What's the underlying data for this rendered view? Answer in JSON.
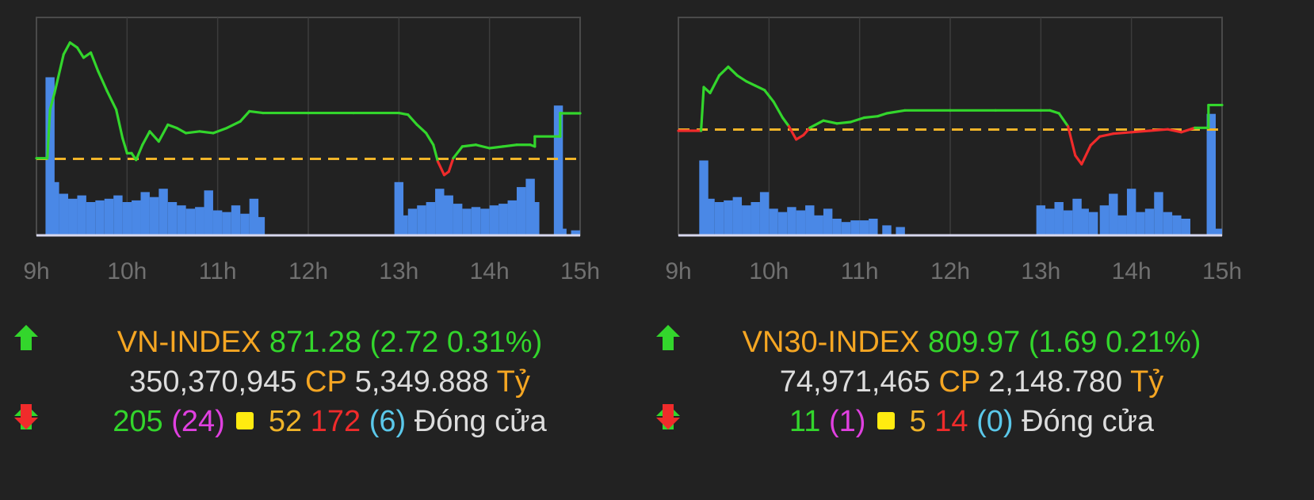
{
  "colors": {
    "background": "#222222",
    "up": "#33d62c",
    "down": "#f02b2b",
    "reference": "#f0b429",
    "volume": "#4a88e6",
    "index_label": "#f5a623",
    "ceiling": "#e040e0",
    "floor": "#5bc8ea",
    "neutral": "#dddddd",
    "axis_label": "#707070"
  },
  "panels": [
    {
      "index_name": "VN-INDEX",
      "value": "871.28",
      "change": "(2.72 0.31%)",
      "volume_cp": "350,370,945",
      "cp_label": "CP",
      "turnover": "5,349.888",
      "ty_label": "Tỷ",
      "advances": "205",
      "advances_ceiling": "(24)",
      "unchanged": "52",
      "declines": "172",
      "declines_floor": "(6)",
      "status": "Đóng cửa"
    },
    {
      "index_name": "VN30-INDEX",
      "value": "809.97",
      "change": "(1.69 0.21%)",
      "volume_cp": "74,971,465",
      "cp_label": "CP",
      "turnover": "2,148.780",
      "ty_label": "Tỷ",
      "advances": "11",
      "advances_ceiling": "(1)",
      "unchanged": "5",
      "declines": "14",
      "declines_floor": "(0)",
      "status": "Đóng cửa"
    }
  ],
  "chart_data": [
    {
      "type": "line",
      "x_ticks": [
        "9h",
        "10h",
        "11h",
        "12h",
        "13h",
        "14h",
        "15h"
      ],
      "xlim": [
        9,
        15
      ],
      "ylim": [
        864,
        877
      ],
      "reference": 868.56,
      "line": [
        [
          9.0,
          868.6
        ],
        [
          9.12,
          868.6
        ],
        [
          9.15,
          871.5
        ],
        [
          9.2,
          872.5
        ],
        [
          9.3,
          874.8
        ],
        [
          9.37,
          875.5
        ],
        [
          9.45,
          875.2
        ],
        [
          9.52,
          874.6
        ],
        [
          9.6,
          874.9
        ],
        [
          9.68,
          873.8
        ],
        [
          9.78,
          872.6
        ],
        [
          9.88,
          871.5
        ],
        [
          9.95,
          869.8
        ],
        [
          10.0,
          868.9
        ],
        [
          10.05,
          868.9
        ],
        [
          10.1,
          868.5
        ],
        [
          10.17,
          869.4
        ],
        [
          10.25,
          870.2
        ],
        [
          10.35,
          869.6
        ],
        [
          10.45,
          870.6
        ],
        [
          10.55,
          870.4
        ],
        [
          10.65,
          870.1
        ],
        [
          10.8,
          870.2
        ],
        [
          10.95,
          870.1
        ],
        [
          11.1,
          870.4
        ],
        [
          11.25,
          870.8
        ],
        [
          11.35,
          871.4
        ],
        [
          11.5,
          871.3
        ],
        [
          12.0,
          871.3
        ],
        [
          12.5,
          871.3
        ],
        [
          13.0,
          871.3
        ],
        [
          13.1,
          871.2
        ],
        [
          13.2,
          870.6
        ],
        [
          13.3,
          870.1
        ],
        [
          13.38,
          869.4
        ],
        [
          13.43,
          868.4
        ],
        [
          13.5,
          867.6
        ],
        [
          13.55,
          867.8
        ],
        [
          13.6,
          868.6
        ],
        [
          13.7,
          869.3
        ],
        [
          13.85,
          869.4
        ],
        [
          14.0,
          869.2
        ],
        [
          14.15,
          869.3
        ],
        [
          14.3,
          869.4
        ],
        [
          14.45,
          869.4
        ],
        [
          14.5,
          869.3
        ],
        [
          14.5,
          869.9
        ],
        [
          14.78,
          869.9
        ],
        [
          14.78,
          871.3
        ],
        [
          14.8,
          871.28
        ],
        [
          15.0,
          871.28
        ]
      ],
      "volume_note": "per-minute matched volume bars",
      "volume": [
        [
          9.15,
          9.5
        ],
        [
          9.2,
          3.2
        ],
        [
          9.3,
          2.5
        ],
        [
          9.4,
          2.2
        ],
        [
          9.5,
          2.4
        ],
        [
          9.6,
          2.0
        ],
        [
          9.7,
          2.1
        ],
        [
          9.8,
          2.2
        ],
        [
          9.9,
          2.4
        ],
        [
          10.0,
          2.0
        ],
        [
          10.1,
          2.1
        ],
        [
          10.2,
          2.6
        ],
        [
          10.3,
          2.3
        ],
        [
          10.4,
          2.8
        ],
        [
          10.5,
          2.0
        ],
        [
          10.6,
          1.8
        ],
        [
          10.7,
          1.6
        ],
        [
          10.8,
          1.7
        ],
        [
          10.9,
          2.7
        ],
        [
          11.0,
          1.5
        ],
        [
          11.1,
          1.4
        ],
        [
          11.2,
          1.8
        ],
        [
          11.3,
          1.3
        ],
        [
          11.4,
          2.2
        ],
        [
          11.47,
          1.1
        ],
        [
          13.0,
          3.2
        ],
        [
          13.05,
          1.2
        ],
        [
          13.15,
          1.6
        ],
        [
          13.25,
          1.8
        ],
        [
          13.35,
          2.0
        ],
        [
          13.45,
          2.8
        ],
        [
          13.55,
          2.4
        ],
        [
          13.65,
          1.9
        ],
        [
          13.75,
          1.6
        ],
        [
          13.85,
          1.7
        ],
        [
          13.95,
          1.6
        ],
        [
          14.05,
          1.8
        ],
        [
          14.15,
          1.9
        ],
        [
          14.25,
          2.1
        ],
        [
          14.35,
          2.9
        ],
        [
          14.45,
          3.4
        ],
        [
          14.5,
          2.0
        ],
        [
          14.76,
          7.8
        ],
        [
          14.8,
          0.4
        ],
        [
          14.95,
          0.3
        ]
      ]
    },
    {
      "type": "line",
      "x_ticks": [
        "9h",
        "10h",
        "11h",
        "12h",
        "13h",
        "14h",
        "15h"
      ],
      "xlim": [
        9,
        15
      ],
      "ylim": [
        801,
        816
      ],
      "reference": 808.28,
      "line": [
        [
          9.0,
          808.2
        ],
        [
          9.25,
          808.2
        ],
        [
          9.28,
          811.2
        ],
        [
          9.35,
          810.8
        ],
        [
          9.45,
          812.0
        ],
        [
          9.55,
          812.6
        ],
        [
          9.65,
          812.0
        ],
        [
          9.75,
          811.6
        ],
        [
          9.85,
          811.3
        ],
        [
          9.95,
          811.0
        ],
        [
          10.05,
          810.2
        ],
        [
          10.15,
          809.1
        ],
        [
          10.22,
          808.5
        ],
        [
          10.3,
          807.6
        ],
        [
          10.38,
          807.9
        ],
        [
          10.45,
          808.4
        ],
        [
          10.6,
          808.9
        ],
        [
          10.75,
          808.7
        ],
        [
          10.9,
          808.8
        ],
        [
          11.05,
          809.1
        ],
        [
          11.2,
          809.2
        ],
        [
          11.3,
          809.4
        ],
        [
          11.5,
          809.6
        ],
        [
          12.0,
          809.6
        ],
        [
          12.5,
          809.6
        ],
        [
          13.0,
          809.6
        ],
        [
          13.1,
          809.6
        ],
        [
          13.2,
          809.4
        ],
        [
          13.3,
          808.5
        ],
        [
          13.38,
          806.5
        ],
        [
          13.45,
          805.9
        ],
        [
          13.55,
          807.2
        ],
        [
          13.65,
          807.8
        ],
        [
          13.8,
          808.0
        ],
        [
          14.0,
          808.1
        ],
        [
          14.2,
          808.2
        ],
        [
          14.4,
          808.3
        ],
        [
          14.55,
          808.1
        ],
        [
          14.7,
          808.4
        ],
        [
          14.85,
          808.4
        ],
        [
          14.85,
          809.97
        ],
        [
          15.0,
          809.97
        ]
      ],
      "volume": [
        [
          9.28,
          4.5
        ],
        [
          9.35,
          2.2
        ],
        [
          9.45,
          2.0
        ],
        [
          9.55,
          2.1
        ],
        [
          9.65,
          2.3
        ],
        [
          9.75,
          1.8
        ],
        [
          9.85,
          2.0
        ],
        [
          9.95,
          2.6
        ],
        [
          10.05,
          1.6
        ],
        [
          10.15,
          1.4
        ],
        [
          10.25,
          1.7
        ],
        [
          10.35,
          1.5
        ],
        [
          10.45,
          1.8
        ],
        [
          10.55,
          1.2
        ],
        [
          10.65,
          1.6
        ],
        [
          10.75,
          1.0
        ],
        [
          10.85,
          0.8
        ],
        [
          10.95,
          0.9
        ],
        [
          11.05,
          0.9
        ],
        [
          11.15,
          1.0
        ],
        [
          11.3,
          0.6
        ],
        [
          11.45,
          0.5
        ],
        [
          13.0,
          1.8
        ],
        [
          13.1,
          1.6
        ],
        [
          13.2,
          2.0
        ],
        [
          13.3,
          1.5
        ],
        [
          13.4,
          2.2
        ],
        [
          13.48,
          1.6
        ],
        [
          13.58,
          1.4
        ],
        [
          13.7,
          1.8
        ],
        [
          13.8,
          2.5
        ],
        [
          13.9,
          1.2
        ],
        [
          14.0,
          2.8
        ],
        [
          14.1,
          1.4
        ],
        [
          14.2,
          1.6
        ],
        [
          14.3,
          2.6
        ],
        [
          14.4,
          1.4
        ],
        [
          14.5,
          1.2
        ],
        [
          14.6,
          1.0
        ],
        [
          14.88,
          7.3
        ],
        [
          14.95,
          0.4
        ]
      ]
    }
  ]
}
